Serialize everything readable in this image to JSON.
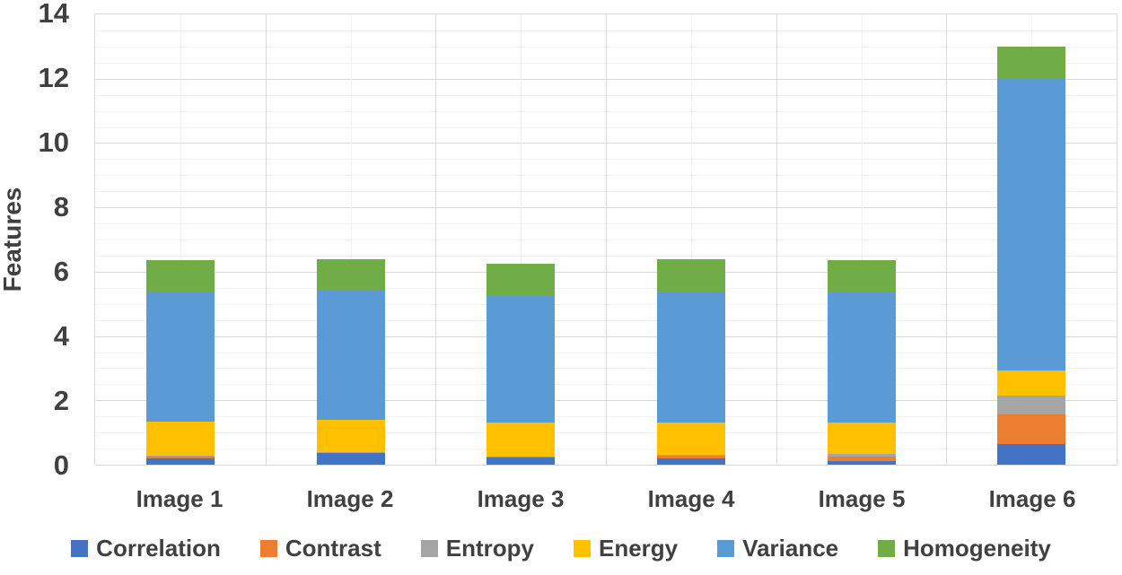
{
  "colors": {
    "text": "#404040",
    "grid_major": "#d9d9d9",
    "grid_minor": "#f2f2f2",
    "plot_border": "#d9d9d9",
    "background": "#ffffff"
  },
  "chart_data": {
    "type": "bar",
    "stacked": true,
    "title": "",
    "xlabel": "",
    "ylabel": "Features",
    "ylim": [
      0,
      14
    ],
    "yticks": [
      0,
      2,
      4,
      6,
      8,
      10,
      12,
      14
    ],
    "minor_grid_step": 0.5,
    "grid": true,
    "legend_position": "bottom",
    "categories": [
      "Image 1",
      "Image 2",
      "Image 3",
      "Image 4",
      "Image 5",
      "Image 6"
    ],
    "series": [
      {
        "name": "Correlation",
        "color": "#4472C4",
        "values": [
          0.2,
          0.36,
          0.22,
          0.2,
          0.1,
          0.65
        ]
      },
      {
        "name": "Contrast",
        "color": "#ED7D31",
        "values": [
          0.06,
          0.02,
          0.03,
          0.08,
          0.15,
          0.9
        ]
      },
      {
        "name": "Entropy",
        "color": "#A5A5A5",
        "values": [
          0.02,
          0.02,
          0.0,
          0.02,
          0.08,
          0.6
        ]
      },
      {
        "name": "Energy",
        "color": "#FFC000",
        "values": [
          1.05,
          1.0,
          1.05,
          1.0,
          0.97,
          0.77
        ]
      },
      {
        "name": "Variance",
        "color": "#5B9BD5",
        "values": [
          4.02,
          4.0,
          3.95,
          4.05,
          4.05,
          9.08
        ]
      },
      {
        "name": "Homogeneity",
        "color": "#70AD47",
        "values": [
          1.0,
          1.0,
          1.0,
          1.05,
          1.0,
          1.0
        ]
      }
    ],
    "totals": [
      6.35,
      6.4,
      6.25,
      6.4,
      6.35,
      13.0
    ]
  }
}
